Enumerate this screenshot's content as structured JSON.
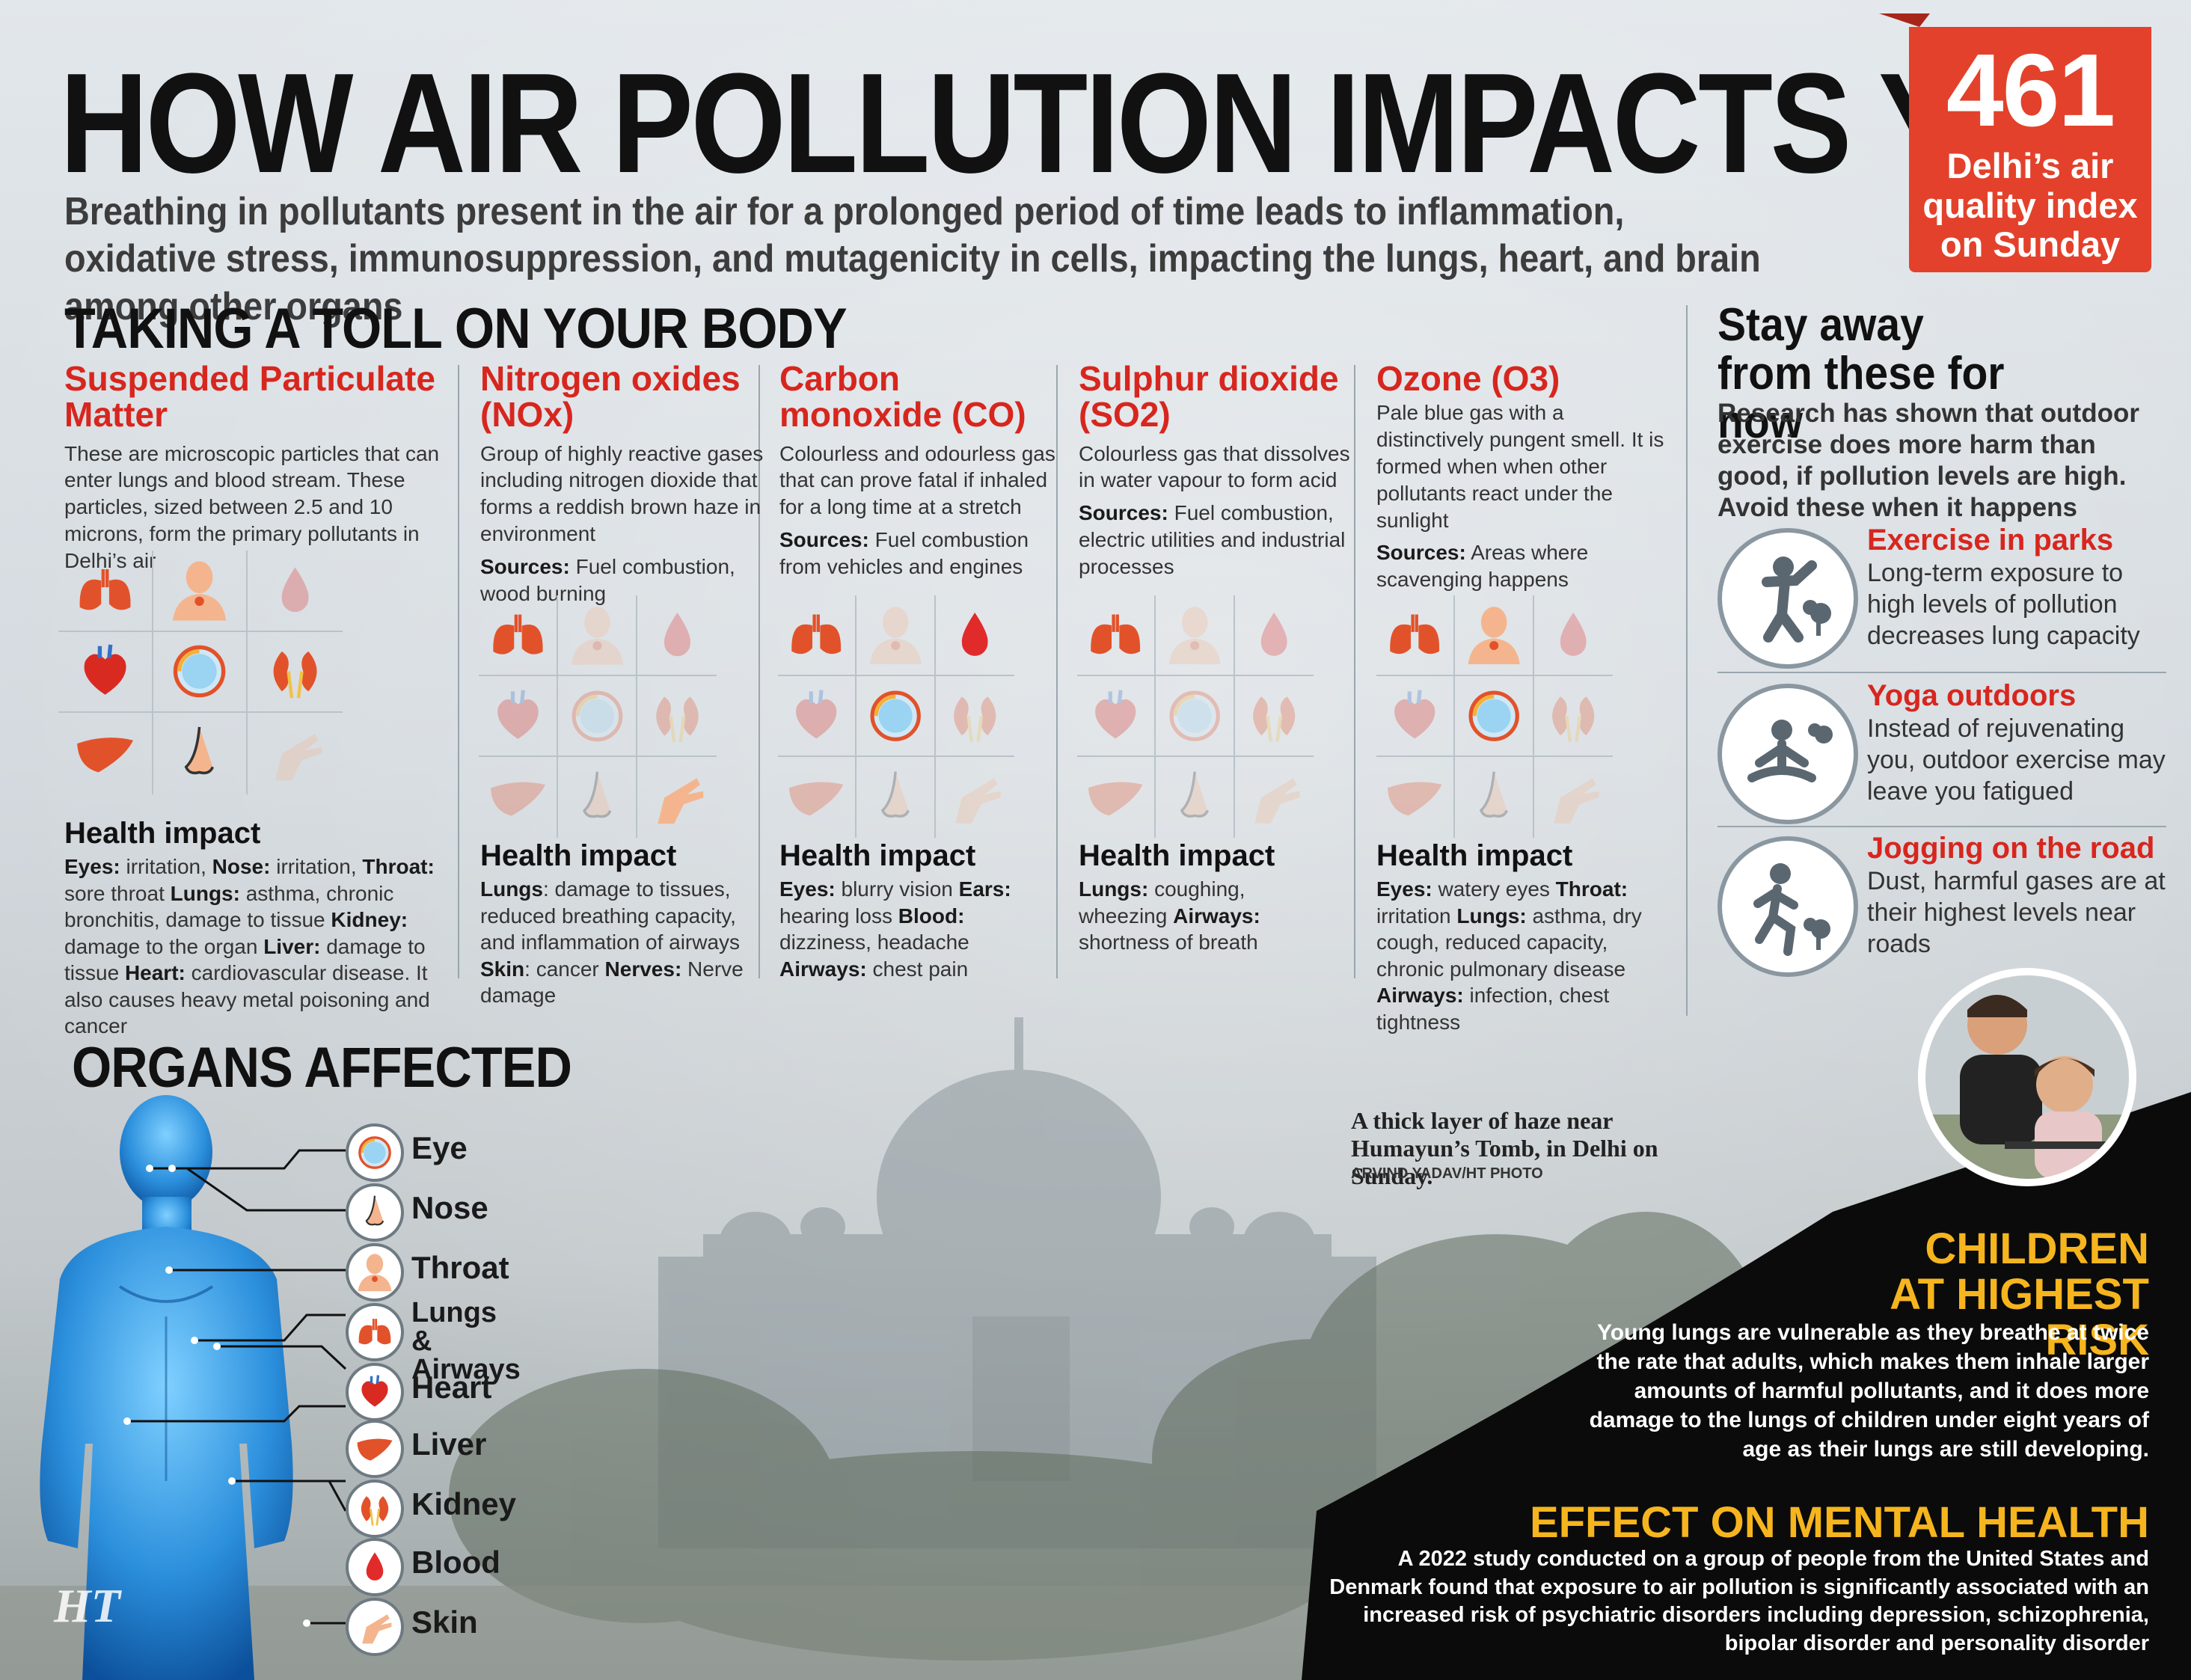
{
  "header": {
    "title": "HOW AIR POLLUTION IMPACTS YOU",
    "intro": "Breathing in pollutants present in the air for a prolonged period of time leads to inflammation, oxidative stress, immunosuppression, and mutagenicity in cells, impacting the lungs, heart, and brain among other organs",
    "aqi_value": "461",
    "aqi_label": "Delhi’s air quality index on Sunday"
  },
  "toll_heading": "TAKING A TOLL ON YOUR BODY",
  "health_impact_label": "Health impact",
  "sources_label": "Sources:",
  "pollutants": [
    {
      "name": "Suspended Particulate Matter",
      "desc": "These are microscopic particles that can enter lungs and blood stream. These particles, sized between 2.5 and 10 microns, form the primary pollutants in Delhi’s air",
      "sources": "",
      "impact": [
        {
          "k": "Eyes:",
          "v": " irritation, "
        },
        {
          "k": "Nose:",
          "v": " irritation, "
        },
        {
          "k": "Throat:",
          "v": " sore throat "
        },
        {
          "k": "Lungs:",
          "v": " asthma, chronic bronchitis, damage to tissue "
        },
        {
          "k": "Kidney:",
          "v": " damage to the organ "
        },
        {
          "k": "Liver:",
          "v": " damage to tissue "
        },
        {
          "k": "Heart:",
          "v": " cardiovascular disease. It also causes heavy metal poisoning and cancer"
        }
      ]
    },
    {
      "name": "Nitrogen oxides (NOx)",
      "desc": "Group of highly reactive gases including nitrogen dioxide that forms a reddish brown haze in environment",
      "sources": " Fuel combustion, wood burning",
      "impact": [
        {
          "k": "Lungs",
          "v": ": damage to tissues, reduced breathing capacity, and inflammation of airways "
        },
        {
          "k": "Skin",
          "v": ": cancer "
        },
        {
          "k": "Nerves:",
          "v": " Nerve damage"
        }
      ]
    },
    {
      "name": "Carbon monoxide (CO)",
      "desc": "Colourless and odourless gas that can prove fatal if inhaled for a long time at a stretch",
      "sources": " Fuel combustion from vehicles and engines",
      "impact": [
        {
          "k": "Eyes:",
          "v": " blurry vision "
        },
        {
          "k": "Ears:",
          "v": " hearing loss "
        },
        {
          "k": "Blood:",
          "v": " dizziness, headache "
        },
        {
          "k": "Airways:",
          "v": " chest pain"
        }
      ]
    },
    {
      "name": "Sulphur dioxide (SO2)",
      "desc": "Colourless gas that dissolves in water vapour to form acid",
      "sources": " Fuel combustion, electric utilities and industrial processes",
      "impact": [
        {
          "k": "Lungs:",
          "v": " coughing, wheezing "
        },
        {
          "k": "Airways:",
          "v": " shortness of breath"
        }
      ]
    },
    {
      "name": "Ozone (O3)",
      "desc": "Pale blue gas with a distinctively pungent smell. It is formed when when other pollutants react under the sunlight",
      "sources": " Areas where scavenging happens",
      "impact": [
        {
          "k": "Eyes:",
          "v": " watery eyes "
        },
        {
          "k": "Throat:",
          "v": " irritation "
        },
        {
          "k": "Lungs:",
          "v": " asthma, dry cough, reduced capacity, chronic pulmonary disease "
        },
        {
          "k": "Airways:",
          "v": " infection, chest tightness"
        }
      ]
    }
  ],
  "stay_away": {
    "title": "Stay away from these for now",
    "text": "Research has shown that outdoor exercise does more harm than good, if pollution levels are high. Avoid these when it happens",
    "activities": [
      {
        "title": "Exercise in parks",
        "text": "Long-term exposure to high levels of pollution decreases lung capacity",
        "icon": "exercise-icon"
      },
      {
        "title": "Yoga outdoors",
        "text": "Instead of rejuvenating you, outdoor exercise may leave you fatigued",
        "icon": "yoga-icon"
      },
      {
        "title": "Jogging on the road",
        "text": "Dust, harmful gases are at their highest levels near roads",
        "icon": "jogging-icon"
      }
    ]
  },
  "organs_heading": "ORGANS AFFECTED",
  "organs": [
    {
      "label": "Eye",
      "icon": "eye-icon"
    },
    {
      "label": "Nose",
      "icon": "nose-icon"
    },
    {
      "label": "Throat",
      "icon": "throat-icon"
    },
    {
      "label": "Lungs & Airways",
      "icon": "lungs-icon"
    },
    {
      "label": "Heart",
      "icon": "heart-icon"
    },
    {
      "label": "Liver",
      "icon": "liver-icon"
    },
    {
      "label": "Kidney",
      "icon": "kidney-icon"
    },
    {
      "label": "Blood",
      "icon": "blood-icon"
    },
    {
      "label": "Skin",
      "icon": "skin-icon"
    }
  ],
  "photo": {
    "caption": "A thick layer of haze near Humayun’s Tomb, in Delhi on Sunday.",
    "credit": "ARVIND YADAV/HT PHOTO"
  },
  "children": {
    "title": "CHILDREN AT HIGHEST RISK",
    "text": "Young lungs are vulnerable as they breathe at twice the rate that adults, which makes them inhale larger amounts of harmful pollutants, and it does more damage to the lungs of children under eight years of age as their lungs are still developing."
  },
  "mental": {
    "title": "EFFECT ON MENTAL HEALTH",
    "text": "A 2022 study conducted on a group of people from the United States and Denmark found that exposure to air pollution is significantly associated with an increased risk of psychiatric disorders including depression, schizophrenia, bipolar disorder and personality disorder"
  },
  "logo": "HT",
  "colors": {
    "accent_red": "#d7261e",
    "aqi_box": "#e3412b",
    "panel_dark": "#0b0b0b",
    "highlight_yellow": "#f6b51e",
    "body_blue": "#3aa3e8",
    "organ_orange": "#e2522a"
  }
}
